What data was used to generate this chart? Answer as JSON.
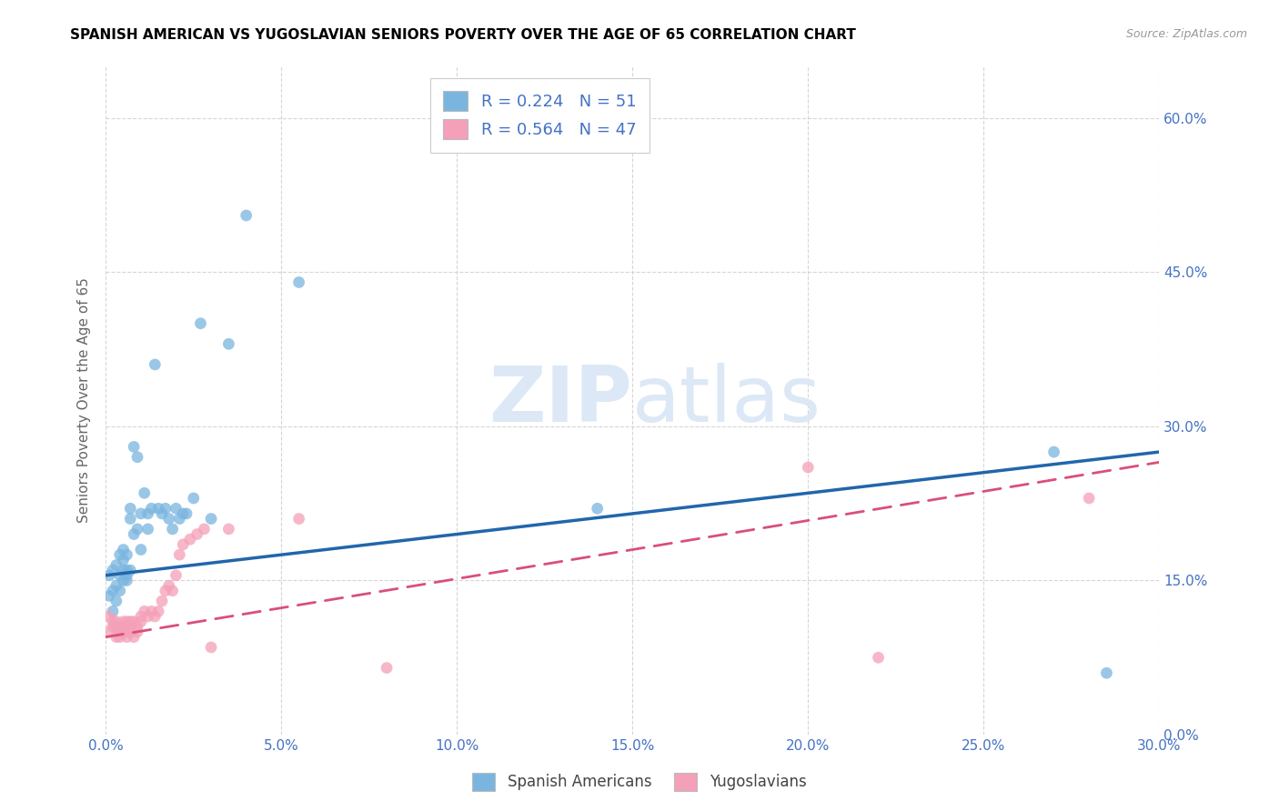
{
  "title": "SPANISH AMERICAN VS YUGOSLAVIAN SENIORS POVERTY OVER THE AGE OF 65 CORRELATION CHART",
  "source": "Source: ZipAtlas.com",
  "ylabel": "Seniors Poverty Over the Age of 65",
  "xlim": [
    0.0,
    0.3
  ],
  "ylim": [
    0.0,
    0.65
  ],
  "xticks": [
    0.0,
    0.05,
    0.1,
    0.15,
    0.2,
    0.25,
    0.3
  ],
  "yticks": [
    0.0,
    0.15,
    0.3,
    0.45,
    0.6
  ],
  "spanish_R": 0.224,
  "spanish_N": 51,
  "yugoslav_R": 0.564,
  "yugoslav_N": 47,
  "blue_color": "#7ab5e0",
  "pink_color": "#f4a0b8",
  "blue_line_color": "#2166ac",
  "pink_line_color": "#d94f7a",
  "background_color": "#ffffff",
  "grid_color": "#cccccc",
  "axis_label_color": "#4472c4",
  "title_color": "#000000",
  "watermark_color": "#dce8f5",
  "sp_x": [
    0.001,
    0.001,
    0.002,
    0.002,
    0.002,
    0.003,
    0.003,
    0.003,
    0.004,
    0.004,
    0.004,
    0.005,
    0.005,
    0.005,
    0.005,
    0.006,
    0.006,
    0.006,
    0.006,
    0.007,
    0.007,
    0.007,
    0.008,
    0.008,
    0.009,
    0.009,
    0.01,
    0.01,
    0.011,
    0.012,
    0.012,
    0.013,
    0.014,
    0.015,
    0.016,
    0.017,
    0.018,
    0.019,
    0.02,
    0.021,
    0.022,
    0.023,
    0.025,
    0.027,
    0.03,
    0.035,
    0.04,
    0.055,
    0.14,
    0.27,
    0.285
  ],
  "sp_y": [
    0.135,
    0.155,
    0.12,
    0.14,
    0.16,
    0.13,
    0.145,
    0.165,
    0.14,
    0.155,
    0.175,
    0.15,
    0.16,
    0.17,
    0.18,
    0.15,
    0.155,
    0.16,
    0.175,
    0.16,
    0.21,
    0.22,
    0.195,
    0.28,
    0.27,
    0.2,
    0.18,
    0.215,
    0.235,
    0.2,
    0.215,
    0.22,
    0.36,
    0.22,
    0.215,
    0.22,
    0.21,
    0.2,
    0.22,
    0.21,
    0.215,
    0.215,
    0.23,
    0.4,
    0.21,
    0.38,
    0.505,
    0.44,
    0.22,
    0.275,
    0.06
  ],
  "yu_x": [
    0.001,
    0.001,
    0.002,
    0.002,
    0.003,
    0.003,
    0.003,
    0.004,
    0.004,
    0.004,
    0.005,
    0.005,
    0.005,
    0.006,
    0.006,
    0.006,
    0.007,
    0.007,
    0.007,
    0.008,
    0.008,
    0.009,
    0.009,
    0.01,
    0.01,
    0.011,
    0.012,
    0.013,
    0.014,
    0.015,
    0.016,
    0.017,
    0.018,
    0.019,
    0.02,
    0.021,
    0.022,
    0.024,
    0.026,
    0.028,
    0.03,
    0.035,
    0.055,
    0.08,
    0.2,
    0.22,
    0.28
  ],
  "yu_y": [
    0.115,
    0.1,
    0.11,
    0.105,
    0.095,
    0.105,
    0.11,
    0.1,
    0.095,
    0.105,
    0.11,
    0.1,
    0.105,
    0.11,
    0.095,
    0.1,
    0.105,
    0.11,
    0.1,
    0.11,
    0.095,
    0.1,
    0.105,
    0.115,
    0.11,
    0.12,
    0.115,
    0.12,
    0.115,
    0.12,
    0.13,
    0.14,
    0.145,
    0.14,
    0.155,
    0.175,
    0.185,
    0.19,
    0.195,
    0.2,
    0.085,
    0.2,
    0.21,
    0.065,
    0.26,
    0.075,
    0.23
  ],
  "sp_line_x0": 0.0,
  "sp_line_y0": 0.155,
  "sp_line_x1": 0.3,
  "sp_line_y1": 0.275,
  "yu_line_x0": 0.0,
  "yu_line_y0": 0.095,
  "yu_line_x1": 0.3,
  "yu_line_y1": 0.265
}
